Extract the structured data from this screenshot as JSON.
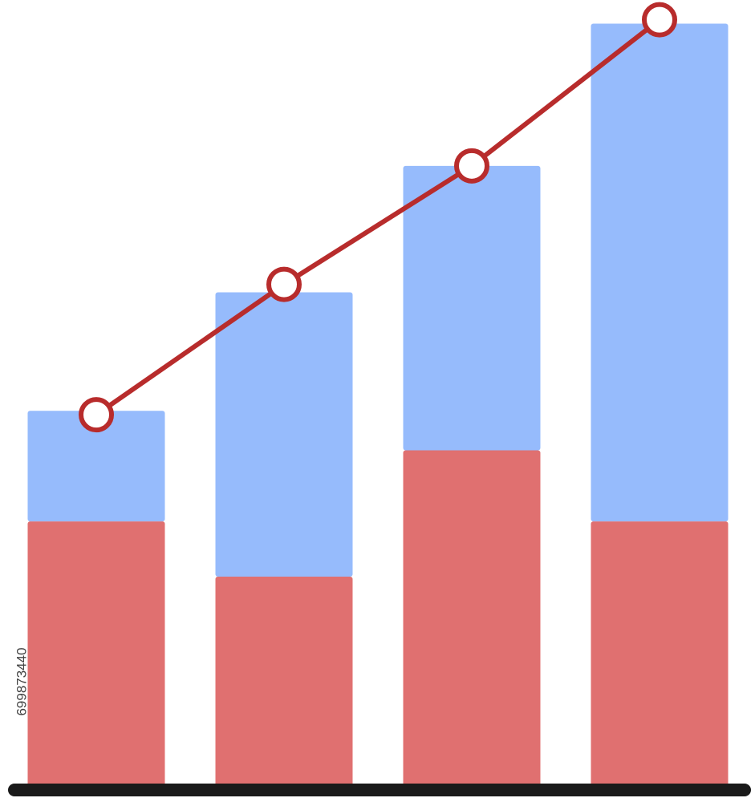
{
  "chart_data": {
    "type": "bar",
    "stacked": true,
    "categories": [
      null,
      null,
      null,
      null
    ],
    "ylim": [
      0,
      100
    ],
    "series": [
      {
        "color": "#e07070",
        "values": [
          34,
          27,
          43,
          34
        ]
      },
      {
        "color": "#96bbfc",
        "values": [
          14,
          36,
          36,
          63
        ]
      },
      {
        "type": "line",
        "color": "#b82c2c",
        "values": [
          47.5,
          64,
          79,
          97.5
        ]
      }
    ]
  },
  "watermark": "699873440"
}
